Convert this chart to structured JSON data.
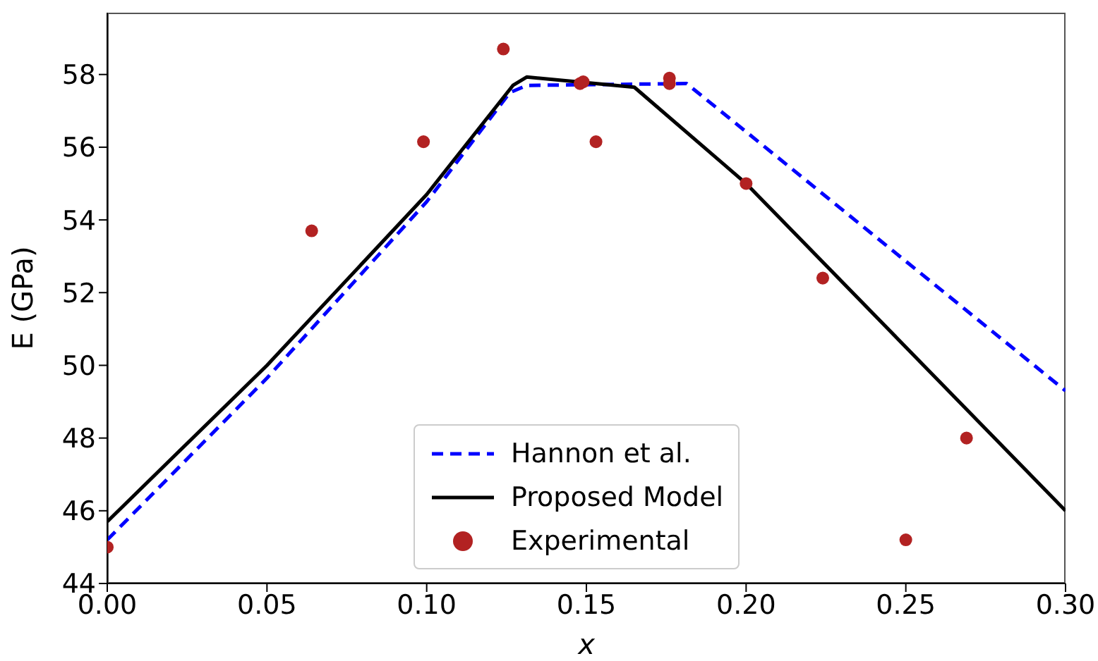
{
  "chart_data": {
    "type": "line",
    "xlabel": "x",
    "ylabel": "E (GPa)",
    "xlim": [
      0,
      0.3
    ],
    "ylim": [
      44,
      59.7
    ],
    "xticks": [
      {
        "value": 0,
        "label": "0.00"
      },
      0.05,
      {
        "value": 0.1,
        "label": "0.10"
      },
      0.15,
      {
        "value": 0.2,
        "label": "0.20"
      },
      0.25,
      {
        "value": 0.3,
        "label": "0.30"
      }
    ],
    "yticks": [
      44,
      46,
      48,
      50,
      52,
      54,
      56,
      58
    ],
    "grid": false,
    "legend": "bottom",
    "series": [
      {
        "name": "Hannon et al.",
        "color": "#0000ff",
        "line_style": "dashed",
        "marker": "none",
        "x": [
          0,
          0.05,
          0.1,
          0.126,
          0.1313,
          0.1814,
          0.3
        ],
        "values": [
          45.2,
          49.65,
          54.5,
          57.5,
          57.7,
          57.75,
          49.3
        ]
      },
      {
        "name": "Proposed Model",
        "color": "#000000",
        "line_style": "solid",
        "marker": "none",
        "x": [
          0,
          0.05,
          0.1,
          0.127,
          0.1313,
          0.165,
          0.2,
          0.3
        ],
        "values": [
          45.7,
          50.0,
          54.7,
          57.7,
          57.93,
          57.65,
          55.0,
          46.0
        ]
      },
      {
        "name": "Experimental",
        "type": "scatter",
        "color": "#b22222",
        "marker": "circle",
        "x": [
          0,
          0.064,
          0.099,
          0.124,
          0.148,
          0.149,
          0.153,
          0.176,
          0.176,
          0.2,
          0.224,
          0.25,
          0.269
        ],
        "values": [
          45.0,
          53.7,
          56.15,
          58.7,
          57.75,
          57.8,
          56.15,
          57.9,
          57.75,
          55.0,
          52.4,
          45.2,
          48.0
        ]
      }
    ]
  }
}
